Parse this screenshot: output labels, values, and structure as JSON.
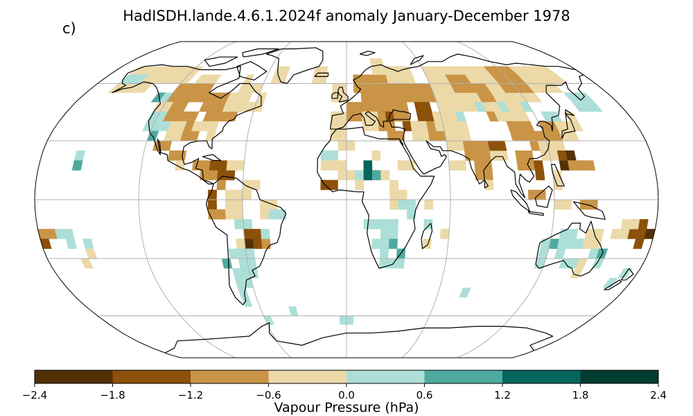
{
  "title": "HadISDH.lande.4.6.1.2024f anomaly January-December 1978",
  "panel_label": "c)",
  "colorbar": {
    "label": "Vapour Pressure (hPa)",
    "tick_labels": [
      "−2.4",
      "−1.8",
      "−1.2",
      "−0.6",
      "0.0",
      "0.6",
      "1.2",
      "1.8",
      "2.4"
    ],
    "bins": [
      {
        "range": [
          -2.4,
          -1.8
        ],
        "color": "#543005"
      },
      {
        "range": [
          -1.8,
          -1.2
        ],
        "color": "#8c510a"
      },
      {
        "range": [
          -1.2,
          -0.6
        ],
        "color": "#c99446"
      },
      {
        "range": [
          -0.6,
          0.0
        ],
        "color": "#ecd9a8"
      },
      {
        "range": [
          0.0,
          0.6
        ],
        "color": "#acdfd7"
      },
      {
        "range": [
          0.6,
          1.2
        ],
        "color": "#4eaa9e"
      },
      {
        "range": [
          1.2,
          1.8
        ],
        "color": "#06665c"
      },
      {
        "range": [
          1.8,
          2.4
        ],
        "color": "#003c30"
      }
    ]
  },
  "colors": {
    "coastline": "#000000",
    "graticule": "#b0b0b0",
    "missing": "#ffffff"
  }
}
